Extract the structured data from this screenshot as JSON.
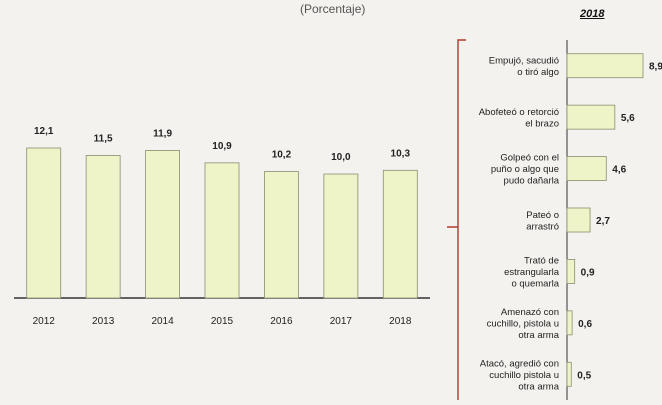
{
  "subtitle": "(Porcentaje)",
  "year_label": "2018",
  "colors": {
    "bar_fill": "#eef3c8",
    "bar_stroke": "#8a8f70",
    "brace": "#b23a2b",
    "axis": "#333333"
  },
  "chart_data": [
    {
      "type": "bar",
      "categories": [
        "2012",
        "2013",
        "2014",
        "2015",
        "2016",
        "2017",
        "2018"
      ],
      "values": [
        12.1,
        11.5,
        11.9,
        10.9,
        10.2,
        10.0,
        10.3
      ],
      "value_labels": [
        "12,1",
        "11,5",
        "11,9",
        "10,9",
        "10,2",
        "10,0",
        "10,3"
      ],
      "ylim": [
        0,
        13.5
      ],
      "orientation": "vertical"
    },
    {
      "type": "bar",
      "title": "2018",
      "orientation": "horizontal",
      "categories": [
        [
          "Empujó, sacudió",
          "o tiró algo"
        ],
        [
          "Abofeteó o retorció",
          "el brazo"
        ],
        [
          "Golpeó con el",
          "puño o  algo que",
          "pudo dañarla"
        ],
        [
          "Pateó o",
          "arrastró"
        ],
        [
          "Trató de",
          "estrangularla",
          "o quemarla"
        ],
        [
          "Amenazó con",
          "cuchillo, pistola u",
          "otra arma"
        ],
        [
          "Atacó, agredió con",
          "cuchillo  pistola u",
          "otra arma"
        ]
      ],
      "values": [
        8.9,
        5.6,
        4.6,
        2.7,
        0.9,
        0.6,
        0.5
      ],
      "value_labels": [
        "8,9",
        "5,6",
        "4,6",
        "2,7",
        "0,9",
        "0,6",
        "0,5"
      ],
      "xlim": [
        0,
        9.3
      ]
    }
  ]
}
